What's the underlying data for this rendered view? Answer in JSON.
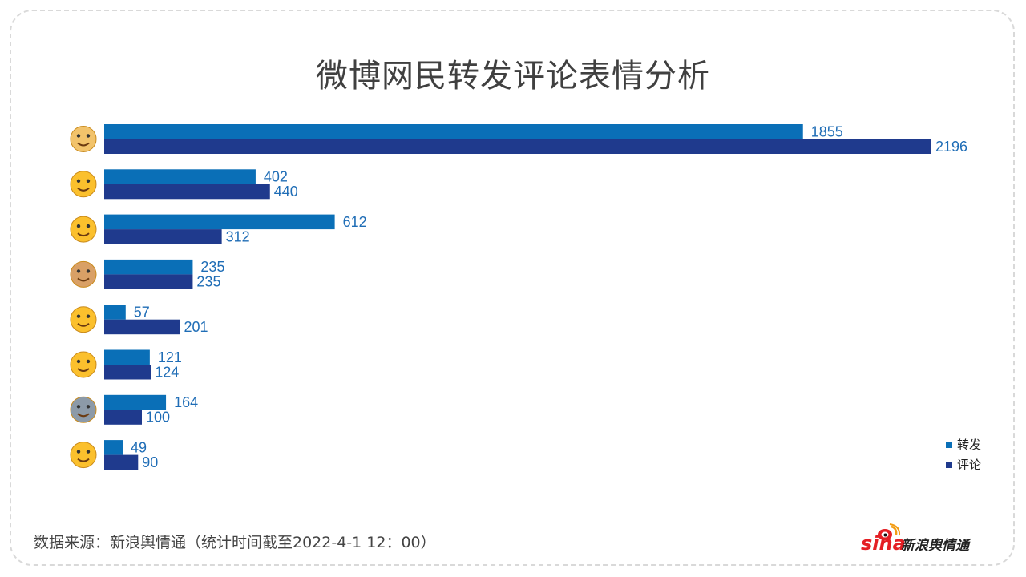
{
  "title": "微博网民转发评论表情分析",
  "colors": {
    "forward": "#0a6fb7",
    "comment": "#1f3a8d",
    "label": "#1f6db6"
  },
  "chart_data": {
    "type": "bar",
    "orientation": "horizontal",
    "title": "微博网民转发评论表情分析",
    "categories": [
      "doge-emoji",
      "laughing-tears-emoji",
      "rolling-laugh-emoji",
      "cat-emoji",
      "shrug-emoji",
      "big-grin-emoji",
      "husky-emoji",
      "drool-emoji"
    ],
    "series": [
      {
        "name": "转发",
        "values": [
          1855,
          402,
          612,
          235,
          57,
          121,
          164,
          49
        ]
      },
      {
        "name": "评论",
        "values": [
          2196,
          440,
          312,
          235,
          201,
          124,
          100,
          90
        ]
      }
    ],
    "xlim": [
      0,
      2196
    ],
    "grid": false,
    "legend": "right"
  },
  "legend": {
    "forward": "转发",
    "comment": "评论"
  },
  "source": "数据来源：新浪舆情通（统计时间截至2022-4-1 12：00）",
  "logo": {
    "sina": "sina",
    "brand": "新浪舆情通"
  }
}
